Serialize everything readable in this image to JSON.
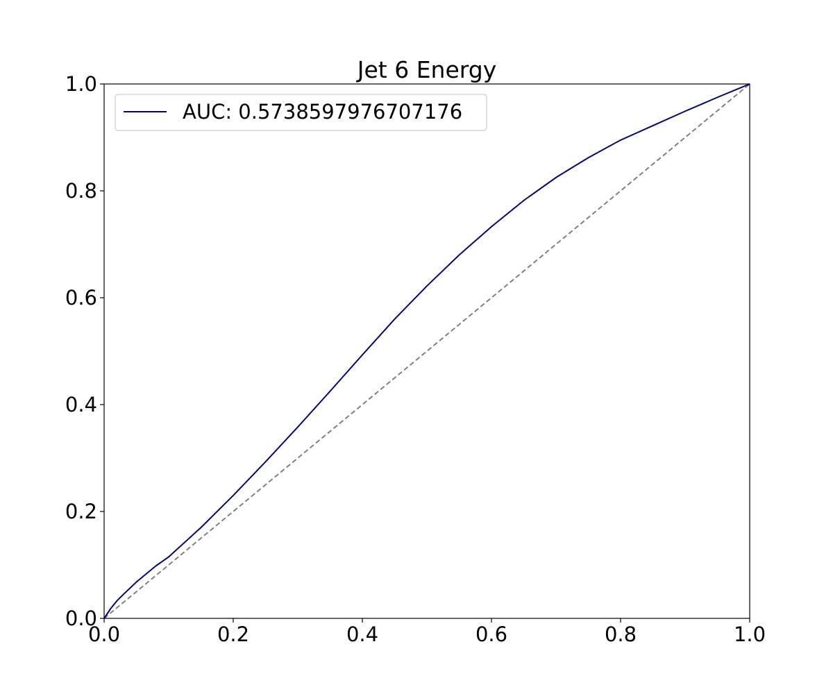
{
  "chart_data": {
    "type": "line",
    "title": "Jet 6 Energy",
    "xlabel": "",
    "ylabel": "",
    "xlim": [
      0.0,
      1.0
    ],
    "ylim": [
      0.0,
      1.0
    ],
    "x_ticks": [
      "0.0",
      "0.2",
      "0.4",
      "0.6",
      "0.8",
      "1.0"
    ],
    "y_ticks": [
      "0.0",
      "0.2",
      "0.4",
      "0.6",
      "0.8",
      "1.0"
    ],
    "grid": false,
    "legend_position": "upper-left",
    "series": [
      {
        "name": "AUC: 0.5738597976707176",
        "color": "#00007f",
        "style": "solid",
        "x": [
          0.0,
          0.01,
          0.02,
          0.03,
          0.05,
          0.08,
          0.1,
          0.15,
          0.2,
          0.25,
          0.3,
          0.35,
          0.4,
          0.45,
          0.5,
          0.55,
          0.6,
          0.65,
          0.7,
          0.75,
          0.8,
          0.85,
          0.9,
          0.95,
          1.0
        ],
        "y": [
          0.0,
          0.018,
          0.033,
          0.045,
          0.068,
          0.098,
          0.115,
          0.17,
          0.23,
          0.293,
          0.358,
          0.425,
          0.493,
          0.56,
          0.622,
          0.68,
          0.733,
          0.782,
          0.825,
          0.862,
          0.895,
          0.922,
          0.949,
          0.975,
          1.0
        ]
      },
      {
        "name": "",
        "color": "#808080",
        "style": "dashed",
        "x": [
          0.0,
          1.0
        ],
        "y": [
          0.0,
          1.0
        ]
      }
    ]
  }
}
